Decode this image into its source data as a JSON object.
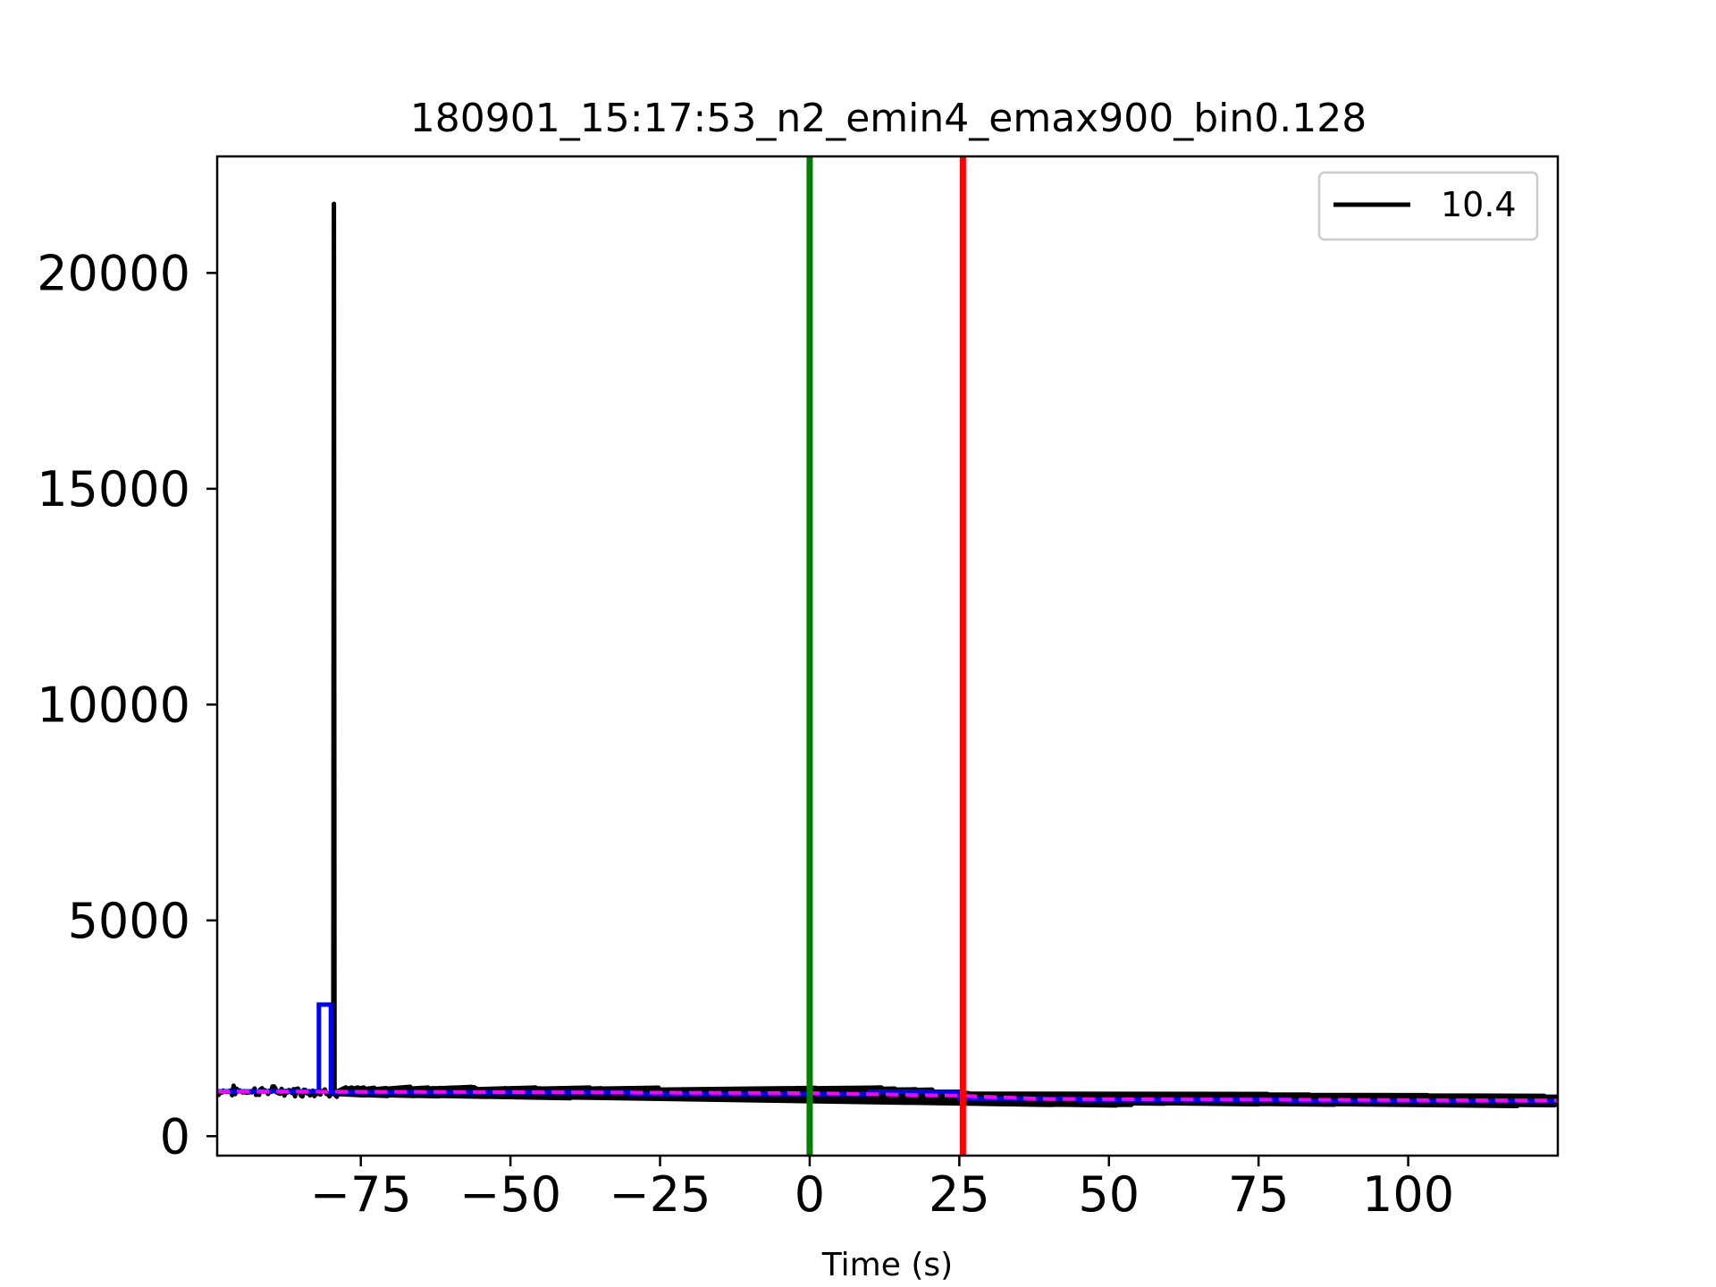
{
  "chart_data": {
    "type": "line",
    "title": "180901_15:17:53_n2_emin4_emax900_bin0.128",
    "xlabel": "Time (s)",
    "ylabel": "",
    "xlim": [
      -99,
      125
    ],
    "ylim": [
      -450,
      22700
    ],
    "xticks": [
      -75,
      -50,
      -25,
      0,
      25,
      50,
      75,
      100
    ],
    "xtick_labels": [
      "−75",
      "−50",
      "−25",
      "0",
      "25",
      "50",
      "75",
      "100"
    ],
    "yticks": [
      0,
      5000,
      10000,
      15000,
      20000
    ],
    "ytick_labels": [
      "0",
      "5000",
      "10000",
      "15000",
      "20000"
    ],
    "grid": false,
    "legend": {
      "position": "top-right",
      "entries": [
        {
          "label": "10.4",
          "color": "#000000"
        }
      ]
    },
    "series": [
      {
        "name": "10.4",
        "role": "light curve",
        "color": "#000000",
        "x": [
          -99,
          -85,
          -81,
          -80,
          -79.6,
          -79.2,
          -78.8,
          -78,
          -60,
          -40,
          -20,
          0,
          12,
          20,
          26,
          30,
          40,
          50,
          60,
          75,
          90,
          110,
          125
        ],
        "y": [
          1050,
          1040,
          1030,
          1040,
          21600,
          1000,
          980,
          1040,
          1030,
          1010,
          990,
          1000,
          1010,
          980,
          920,
          880,
          850,
          840,
          850,
          860,
          840,
          830,
          820
        ],
        "noise_amplitude": 90
      },
      {
        "role": "bayesian blocks",
        "color": "#0000ff",
        "x": [
          -99,
          -82,
          -82,
          -80,
          -80,
          -30,
          -30,
          10,
          10,
          25,
          25,
          45,
          45,
          80,
          80,
          125
        ],
        "y": [
          1040,
          1040,
          3050,
          3050,
          1020,
          1020,
          980,
          980,
          1030,
          1030,
          870,
          870,
          850,
          850,
          820,
          820
        ]
      },
      {
        "role": "background fit",
        "color": "#ff00ff",
        "dashed": true,
        "x": [
          -99,
          -50,
          0,
          25,
          40,
          125
        ],
        "y": [
          1040,
          1020,
          1000,
          940,
          860,
          830
        ]
      }
    ],
    "vlines": [
      {
        "x": 0,
        "color": "#008000"
      },
      {
        "x": 25.6,
        "color": "#ff0000"
      }
    ]
  }
}
